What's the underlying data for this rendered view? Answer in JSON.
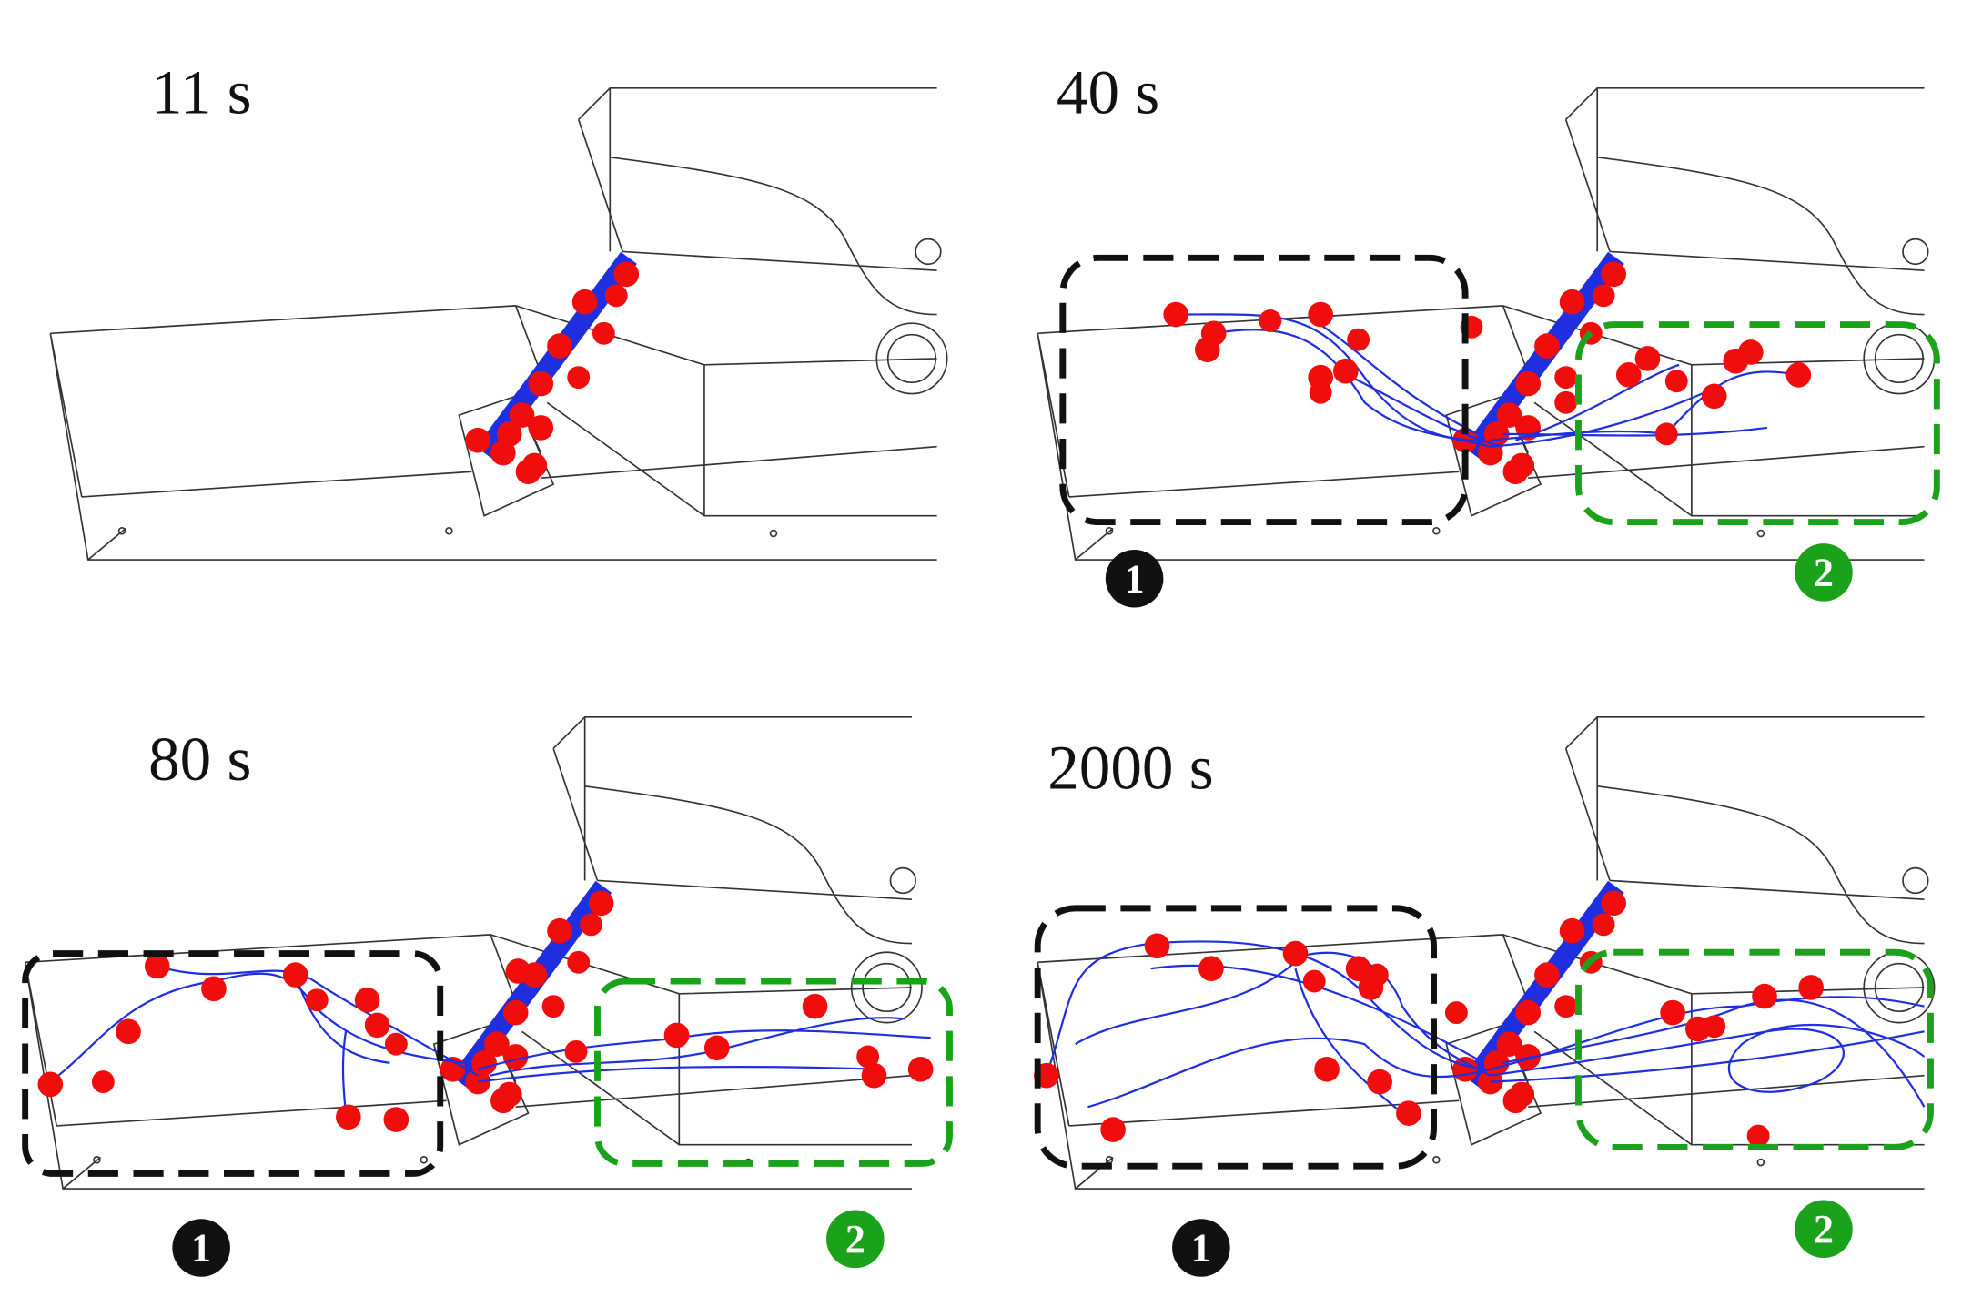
{
  "panels": [
    {
      "time": "11 s"
    },
    {
      "time": "40 s",
      "regions": [
        "1",
        "2"
      ]
    },
    {
      "time": "80 s",
      "regions": [
        "1",
        "2"
      ]
    },
    {
      "time": "2000 s",
      "regions": [
        "1",
        "2"
      ]
    }
  ]
}
